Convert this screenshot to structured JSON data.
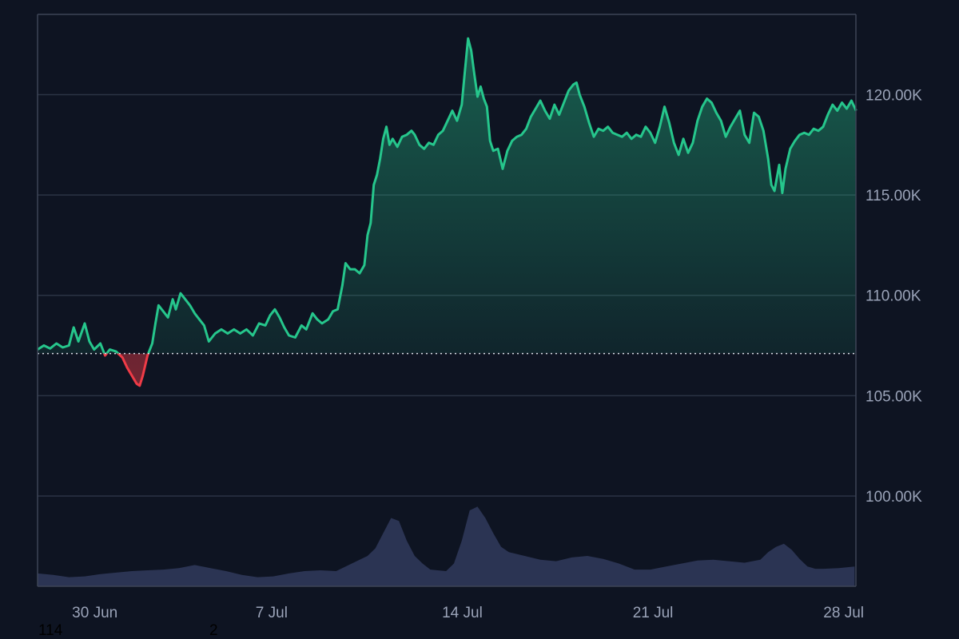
{
  "chart_data": {
    "type": "area",
    "baseline": 107100,
    "ylim": [
      95500,
      124000
    ],
    "y_ticks": [
      100000,
      105000,
      110000,
      115000,
      120000
    ],
    "y_tick_labels": [
      "100.00K",
      "105.00K",
      "110.00K",
      "115.00K",
      "120.00K"
    ],
    "x_tick_labels": [
      {
        "label": "30 Jun",
        "t": 0.07
      },
      {
        "label": "7 Jul",
        "t": 0.286
      },
      {
        "label": "14 Jul",
        "t": 0.519
      },
      {
        "label": "21 Jul",
        "t": 0.752
      },
      {
        "label": "28 Jul",
        "t": 0.985
      }
    ],
    "price_points": [
      [
        0.0,
        107300
      ],
      [
        0.008,
        107500
      ],
      [
        0.016,
        107350
      ],
      [
        0.024,
        107600
      ],
      [
        0.032,
        107400
      ],
      [
        0.04,
        107500
      ],
      [
        0.046,
        108400
      ],
      [
        0.052,
        107700
      ],
      [
        0.06,
        108600
      ],
      [
        0.066,
        107700
      ],
      [
        0.072,
        107300
      ],
      [
        0.08,
        107600
      ],
      [
        0.086,
        107000
      ],
      [
        0.092,
        107300
      ],
      [
        0.1,
        107200
      ],
      [
        0.108,
        106900
      ],
      [
        0.114,
        106400
      ],
      [
        0.12,
        106000
      ],
      [
        0.126,
        105600
      ],
      [
        0.13,
        105500
      ],
      [
        0.134,
        106000
      ],
      [
        0.14,
        107000
      ],
      [
        0.146,
        107600
      ],
      [
        0.15,
        108600
      ],
      [
        0.154,
        109500
      ],
      [
        0.16,
        109200
      ],
      [
        0.166,
        108900
      ],
      [
        0.172,
        109800
      ],
      [
        0.176,
        109300
      ],
      [
        0.182,
        110100
      ],
      [
        0.188,
        109800
      ],
      [
        0.194,
        109500
      ],
      [
        0.2,
        109100
      ],
      [
        0.206,
        108800
      ],
      [
        0.212,
        108500
      ],
      [
        0.218,
        107700
      ],
      [
        0.226,
        108100
      ],
      [
        0.234,
        108300
      ],
      [
        0.242,
        108100
      ],
      [
        0.25,
        108300
      ],
      [
        0.258,
        108100
      ],
      [
        0.266,
        108300
      ],
      [
        0.274,
        108000
      ],
      [
        0.282,
        108600
      ],
      [
        0.29,
        108500
      ],
      [
        0.296,
        109000
      ],
      [
        0.302,
        109300
      ],
      [
        0.308,
        108900
      ],
      [
        0.314,
        108400
      ],
      [
        0.32,
        108000
      ],
      [
        0.328,
        107900
      ],
      [
        0.336,
        108500
      ],
      [
        0.342,
        108300
      ],
      [
        0.35,
        109100
      ],
      [
        0.356,
        108800
      ],
      [
        0.362,
        108600
      ],
      [
        0.37,
        108800
      ],
      [
        0.376,
        109200
      ],
      [
        0.382,
        109300
      ],
      [
        0.388,
        110500
      ],
      [
        0.392,
        111600
      ],
      [
        0.398,
        111300
      ],
      [
        0.404,
        111300
      ],
      [
        0.41,
        111100
      ],
      [
        0.416,
        111500
      ],
      [
        0.42,
        113000
      ],
      [
        0.424,
        113600
      ],
      [
        0.428,
        115500
      ],
      [
        0.432,
        116000
      ],
      [
        0.436,
        116800
      ],
      [
        0.44,
        117800
      ],
      [
        0.444,
        118400
      ],
      [
        0.448,
        117500
      ],
      [
        0.452,
        117800
      ],
      [
        0.458,
        117400
      ],
      [
        0.464,
        117900
      ],
      [
        0.47,
        118000
      ],
      [
        0.476,
        118200
      ],
      [
        0.48,
        118000
      ],
      [
        0.486,
        117500
      ],
      [
        0.492,
        117300
      ],
      [
        0.498,
        117600
      ],
      [
        0.504,
        117500
      ],
      [
        0.51,
        118000
      ],
      [
        0.516,
        118200
      ],
      [
        0.522,
        118700
      ],
      [
        0.528,
        119200
      ],
      [
        0.534,
        118700
      ],
      [
        0.54,
        119500
      ],
      [
        0.544,
        121200
      ],
      [
        0.548,
        122800
      ],
      [
        0.552,
        122200
      ],
      [
        0.556,
        121000
      ],
      [
        0.56,
        119900
      ],
      [
        0.564,
        120400
      ],
      [
        0.568,
        119800
      ],
      [
        0.572,
        119400
      ],
      [
        0.576,
        117700
      ],
      [
        0.58,
        117200
      ],
      [
        0.586,
        117300
      ],
      [
        0.592,
        116300
      ],
      [
        0.598,
        117200
      ],
      [
        0.604,
        117700
      ],
      [
        0.61,
        117900
      ],
      [
        0.616,
        118000
      ],
      [
        0.622,
        118300
      ],
      [
        0.628,
        118900
      ],
      [
        0.634,
        119300
      ],
      [
        0.64,
        119700
      ],
      [
        0.646,
        119200
      ],
      [
        0.652,
        118800
      ],
      [
        0.658,
        119500
      ],
      [
        0.664,
        119000
      ],
      [
        0.67,
        119600
      ],
      [
        0.676,
        120200
      ],
      [
        0.682,
        120500
      ],
      [
        0.686,
        120600
      ],
      [
        0.69,
        120000
      ],
      [
        0.696,
        119400
      ],
      [
        0.702,
        118600
      ],
      [
        0.708,
        117900
      ],
      [
        0.714,
        118300
      ],
      [
        0.72,
        118200
      ],
      [
        0.726,
        118400
      ],
      [
        0.732,
        118100
      ],
      [
        0.738,
        118000
      ],
      [
        0.744,
        117900
      ],
      [
        0.75,
        118100
      ],
      [
        0.756,
        117800
      ],
      [
        0.762,
        118000
      ],
      [
        0.768,
        117900
      ],
      [
        0.774,
        118400
      ],
      [
        0.78,
        118100
      ],
      [
        0.786,
        117600
      ],
      [
        0.792,
        118400
      ],
      [
        0.798,
        119400
      ],
      [
        0.804,
        118600
      ],
      [
        0.81,
        117600
      ],
      [
        0.816,
        117000
      ],
      [
        0.822,
        117800
      ],
      [
        0.828,
        117100
      ],
      [
        0.834,
        117600
      ],
      [
        0.84,
        118700
      ],
      [
        0.846,
        119400
      ],
      [
        0.852,
        119800
      ],
      [
        0.858,
        119600
      ],
      [
        0.864,
        119100
      ],
      [
        0.87,
        118700
      ],
      [
        0.876,
        117900
      ],
      [
        0.882,
        118400
      ],
      [
        0.888,
        118800
      ],
      [
        0.894,
        119200
      ],
      [
        0.9,
        118000
      ],
      [
        0.906,
        117600
      ],
      [
        0.912,
        119100
      ],
      [
        0.918,
        118900
      ],
      [
        0.924,
        118200
      ],
      [
        0.93,
        116800
      ],
      [
        0.934,
        115500
      ],
      [
        0.938,
        115200
      ],
      [
        0.944,
        116500
      ],
      [
        0.948,
        115100
      ],
      [
        0.952,
        116300
      ],
      [
        0.958,
        117300
      ],
      [
        0.964,
        117700
      ],
      [
        0.97,
        118000
      ],
      [
        0.976,
        118100
      ],
      [
        0.982,
        118000
      ],
      [
        0.988,
        118300
      ],
      [
        0.994,
        118200
      ],
      [
        1.0,
        118400
      ],
      [
        1.006,
        119000
      ],
      [
        1.012,
        119500
      ],
      [
        1.018,
        119200
      ],
      [
        1.024,
        119600
      ],
      [
        1.03,
        119300
      ],
      [
        1.036,
        119700
      ],
      [
        1.042,
        119200
      ]
    ],
    "volume_points": [
      [
        0.0,
        0.17
      ],
      [
        0.02,
        0.15
      ],
      [
        0.04,
        0.12
      ],
      [
        0.06,
        0.13
      ],
      [
        0.08,
        0.16
      ],
      [
        0.1,
        0.18
      ],
      [
        0.12,
        0.2
      ],
      [
        0.14,
        0.21
      ],
      [
        0.16,
        0.22
      ],
      [
        0.18,
        0.24
      ],
      [
        0.2,
        0.28
      ],
      [
        0.22,
        0.24
      ],
      [
        0.24,
        0.2
      ],
      [
        0.26,
        0.15
      ],
      [
        0.28,
        0.12
      ],
      [
        0.3,
        0.13
      ],
      [
        0.32,
        0.17
      ],
      [
        0.34,
        0.2
      ],
      [
        0.36,
        0.21
      ],
      [
        0.38,
        0.2
      ],
      [
        0.4,
        0.3
      ],
      [
        0.42,
        0.4
      ],
      [
        0.43,
        0.5
      ],
      [
        0.44,
        0.7
      ],
      [
        0.45,
        0.9
      ],
      [
        0.46,
        0.86
      ],
      [
        0.47,
        0.6
      ],
      [
        0.48,
        0.4
      ],
      [
        0.49,
        0.3
      ],
      [
        0.5,
        0.22
      ],
      [
        0.52,
        0.2
      ],
      [
        0.53,
        0.3
      ],
      [
        0.54,
        0.6
      ],
      [
        0.55,
        1.0
      ],
      [
        0.56,
        1.05
      ],
      [
        0.57,
        0.9
      ],
      [
        0.58,
        0.7
      ],
      [
        0.59,
        0.52
      ],
      [
        0.6,
        0.45
      ],
      [
        0.62,
        0.4
      ],
      [
        0.64,
        0.35
      ],
      [
        0.66,
        0.33
      ],
      [
        0.68,
        0.38
      ],
      [
        0.7,
        0.4
      ],
      [
        0.72,
        0.36
      ],
      [
        0.74,
        0.3
      ],
      [
        0.76,
        0.22
      ],
      [
        0.78,
        0.22
      ],
      [
        0.8,
        0.26
      ],
      [
        0.82,
        0.3
      ],
      [
        0.84,
        0.34
      ],
      [
        0.86,
        0.35
      ],
      [
        0.88,
        0.33
      ],
      [
        0.9,
        0.31
      ],
      [
        0.92,
        0.35
      ],
      [
        0.93,
        0.45
      ],
      [
        0.94,
        0.52
      ],
      [
        0.95,
        0.56
      ],
      [
        0.96,
        0.48
      ],
      [
        0.97,
        0.36
      ],
      [
        0.98,
        0.26
      ],
      [
        0.99,
        0.23
      ],
      [
        1.0,
        0.23
      ],
      [
        1.02,
        0.24
      ],
      [
        1.04,
        0.26
      ]
    ]
  },
  "colors": {
    "background": "#0e1422",
    "up": "#26c68c",
    "down": "#ef3b47",
    "grid": "#2b3344",
    "axis": "#3d4556",
    "volume": "#2d3656"
  },
  "footer": {
    "left_value": "114",
    "right_value": "2"
  }
}
